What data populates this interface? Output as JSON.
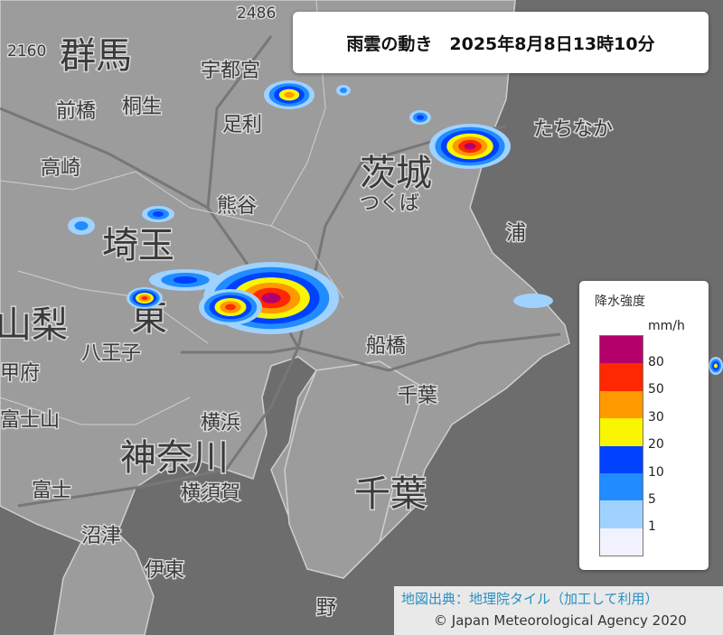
{
  "title": "雨雲の動き　2025年8月8日13時10分",
  "legend": {
    "title": "降水強度",
    "unit": "mm/h",
    "colors": [
      "#b4006a",
      "#ff2800",
      "#ff9900",
      "#faf500",
      "#0041ff",
      "#218cff",
      "#a0d2ff",
      "#f2f2ff"
    ],
    "ticks": [
      "80",
      "50",
      "30",
      "20",
      "10",
      "5",
      "1"
    ]
  },
  "map": {
    "prefectures": [
      "群馬",
      "埼玉",
      "茨城",
      "千葉",
      "神奈川",
      "山梨",
      "東"
    ],
    "cities": [
      "前橋",
      "桐生",
      "高崎",
      "宇都宮",
      "足利",
      "熊谷",
      "つくば",
      "たちなか",
      "船橋",
      "千葉",
      "横浜",
      "横須賀",
      "八王子",
      "甲府",
      "富士山",
      "富士",
      "沼津",
      "伊東",
      "浦",
      "野",
      "2486",
      "2160"
    ],
    "land_color": "#9a9a9a",
    "sea_color": "#6b6b6b"
  },
  "credit": {
    "source": "地図出典：地理院タイル（加工して利用）",
    "copyright": "© Japan Meteorological Agency 2020"
  }
}
